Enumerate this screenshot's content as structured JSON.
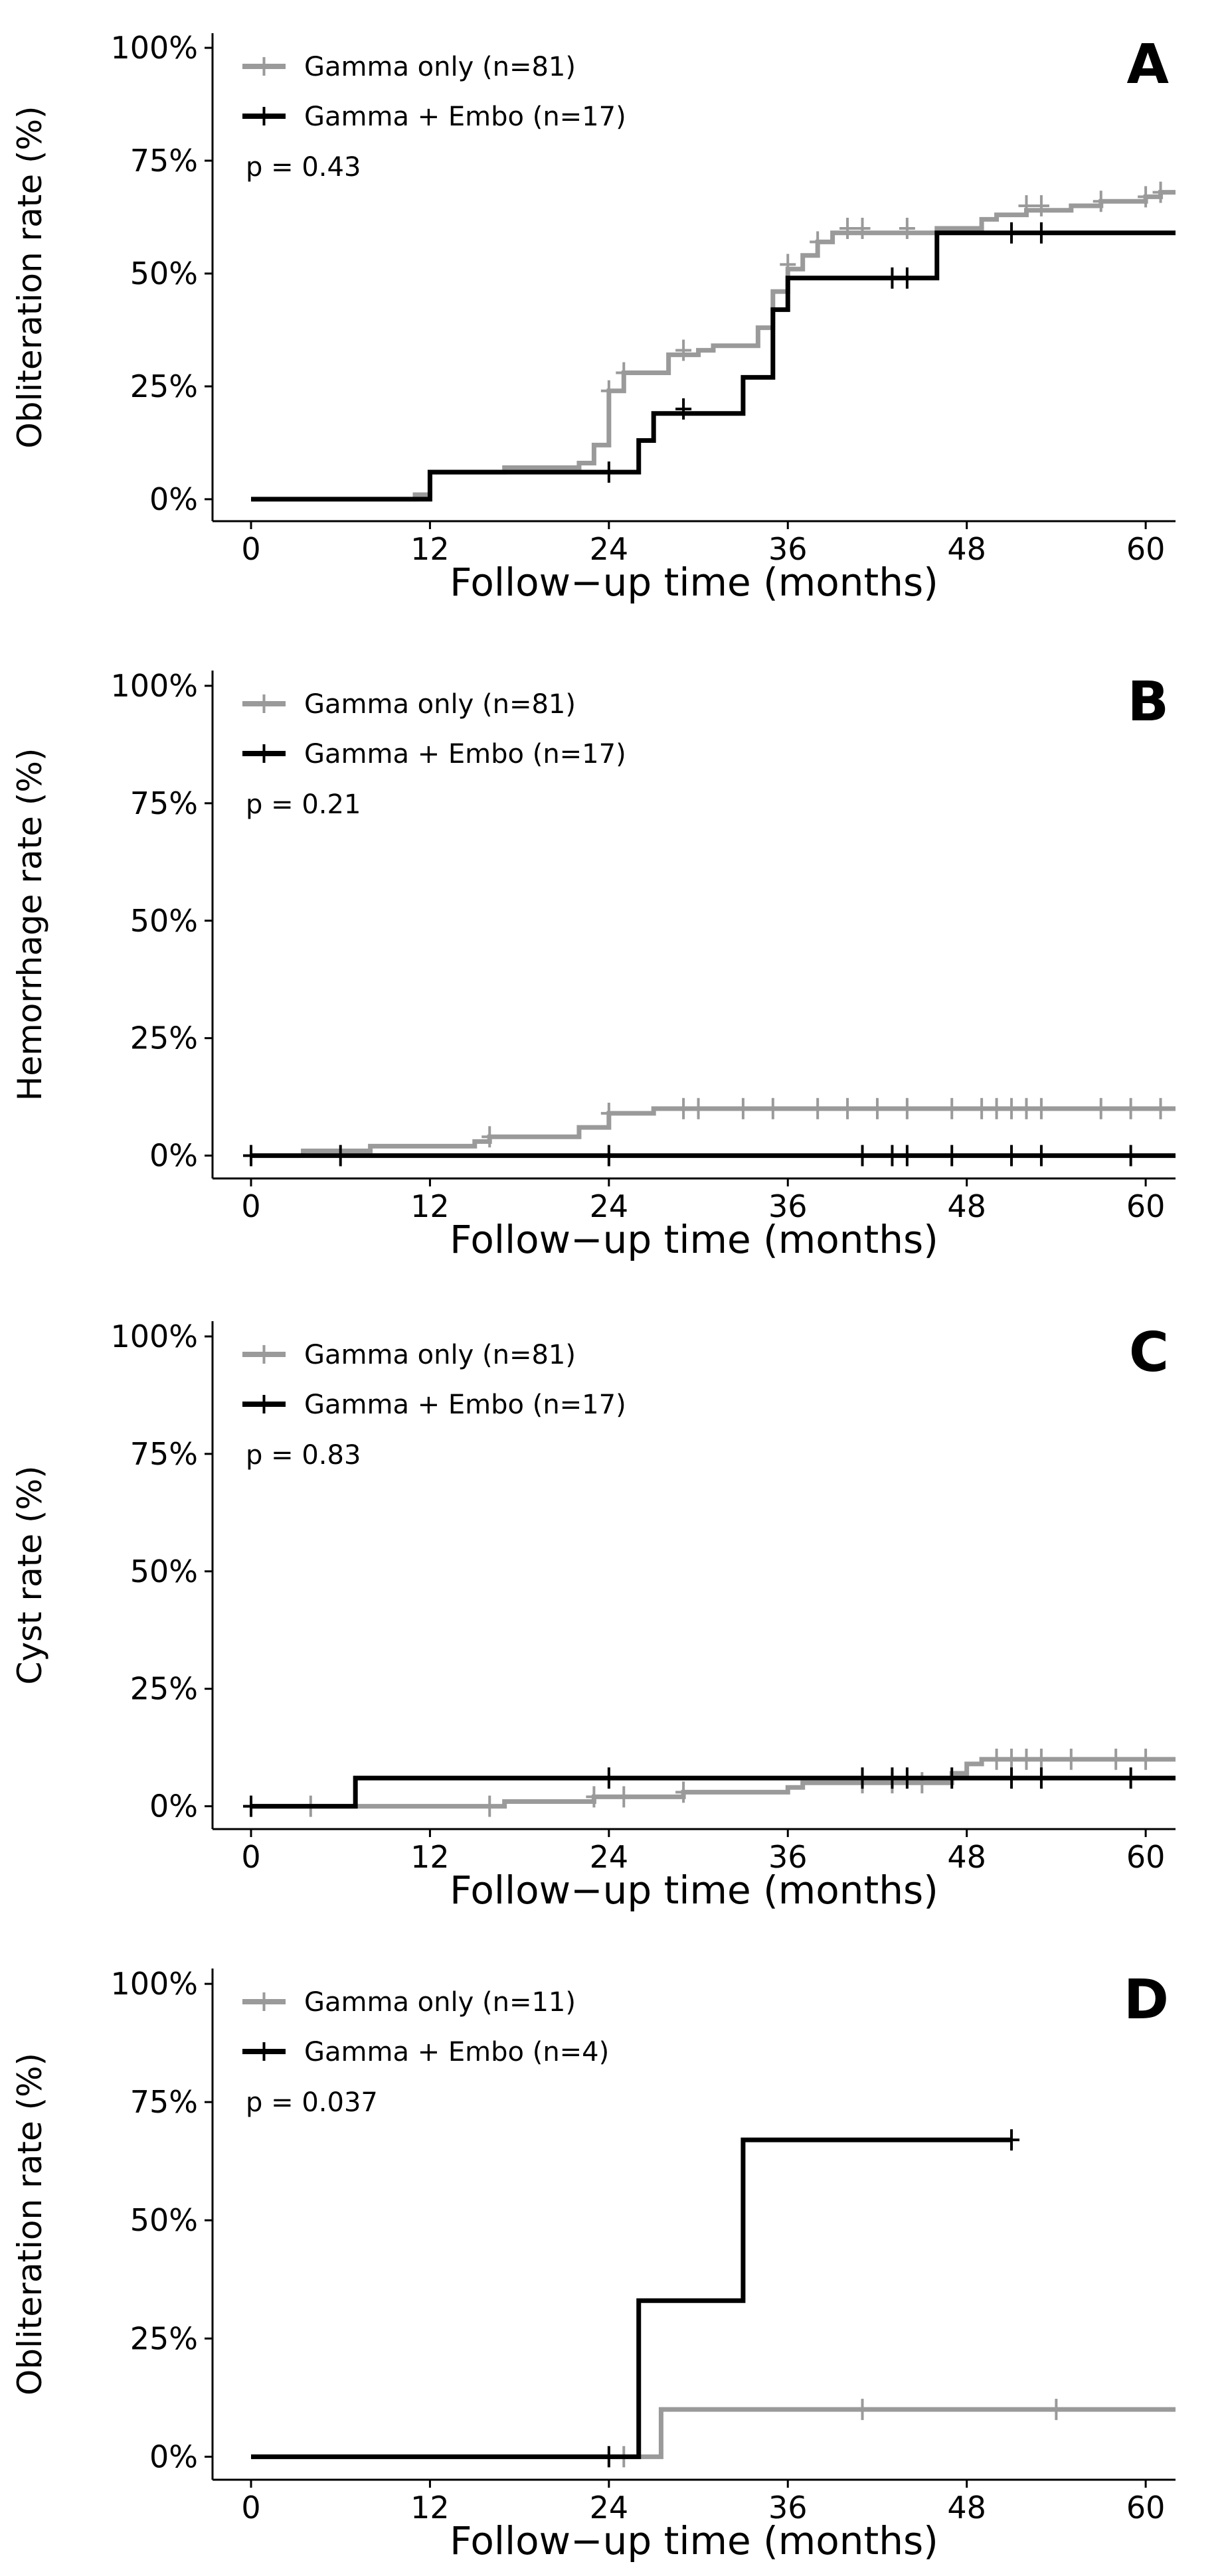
{
  "chart_data": [
    {
      "type": "line",
      "panel_label": "A",
      "ylabel": "Obliteration rate (%)",
      "xlabel": "Follow−up time (months)",
      "xlim": [
        0,
        62
      ],
      "ylim": [
        0,
        100
      ],
      "x_ticks": [
        0,
        12,
        24,
        36,
        48,
        60
      ],
      "y_ticks": [
        "0%",
        "25%",
        "50%",
        "75%",
        "100%"
      ],
      "p_value": "p = 0.43",
      "series": [
        {
          "name": "Gamma only (n=81)",
          "color": "#9a9a9a",
          "steps": [
            [
              0,
              0
            ],
            [
              11,
              1
            ],
            [
              12,
              6
            ],
            [
              17,
              7
            ],
            [
              22,
              8
            ],
            [
              23,
              12
            ],
            [
              24,
              24
            ],
            [
              25,
              28
            ],
            [
              27,
              28
            ],
            [
              28,
              32
            ],
            [
              30,
              33
            ],
            [
              31,
              34
            ],
            [
              34,
              38
            ],
            [
              35,
              46
            ],
            [
              36,
              51
            ],
            [
              37,
              54
            ],
            [
              38,
              57
            ],
            [
              39,
              59
            ],
            [
              46,
              60
            ],
            [
              49,
              62
            ],
            [
              50,
              63
            ],
            [
              52,
              64
            ],
            [
              55,
              65
            ],
            [
              56,
              65
            ],
            [
              57,
              66
            ],
            [
              60,
              67
            ],
            [
              61,
              68
            ],
            [
              62,
              68
            ]
          ],
          "censors": [
            [
              24,
              24
            ],
            [
              25,
              28
            ],
            [
              29,
              33
            ],
            [
              36,
              52
            ],
            [
              38,
              57
            ],
            [
              40,
              60
            ],
            [
              41,
              60
            ],
            [
              44,
              60
            ],
            [
              52,
              65
            ],
            [
              53,
              65
            ],
            [
              57,
              66
            ],
            [
              60,
              67
            ],
            [
              61,
              68
            ]
          ]
        },
        {
          "name": "Gamma + Embo (n=17)",
          "color": "#000000",
          "steps": [
            [
              0,
              0
            ],
            [
              12,
              6
            ],
            [
              25,
              6
            ],
            [
              26,
              13
            ],
            [
              27,
              19
            ],
            [
              33,
              19
            ],
            [
              33,
              27
            ],
            [
              35,
              27
            ],
            [
              35,
              42
            ],
            [
              36,
              49
            ],
            [
              46,
              49
            ],
            [
              46,
              59
            ],
            [
              62,
              59
            ]
          ],
          "censors": [
            [
              24,
              6
            ],
            [
              29,
              20
            ],
            [
              43,
              49
            ],
            [
              44,
              49
            ],
            [
              51,
              59
            ],
            [
              53,
              59
            ]
          ]
        }
      ]
    },
    {
      "type": "line",
      "panel_label": "B",
      "ylabel": "Hemorrhage rate (%)",
      "xlabel": "Follow−up time (months)",
      "xlim": [
        0,
        62
      ],
      "ylim": [
        0,
        100
      ],
      "x_ticks": [
        0,
        12,
        24,
        36,
        48,
        60
      ],
      "y_ticks": [
        "0%",
        "25%",
        "50%",
        "75%",
        "100%"
      ],
      "p_value": "p = 0.21",
      "series": [
        {
          "name": "Gamma only (n=81)",
          "color": "#9a9a9a",
          "steps": [
            [
              3.5,
              0
            ],
            [
              3.5,
              1
            ],
            [
              8,
              2
            ],
            [
              15,
              3
            ],
            [
              16,
              4
            ],
            [
              19,
              4
            ],
            [
              22,
              6
            ],
            [
              24,
              9
            ],
            [
              26,
              9
            ],
            [
              27,
              10
            ],
            [
              28,
              10
            ],
            [
              62,
              10
            ]
          ],
          "censors": [
            [
              16,
              4
            ],
            [
              24,
              9
            ],
            [
              29,
              10
            ],
            [
              30,
              10
            ],
            [
              33,
              10
            ],
            [
              35,
              10
            ],
            [
              38,
              10
            ],
            [
              40,
              10
            ],
            [
              42,
              10
            ],
            [
              44,
              10
            ],
            [
              47,
              10
            ],
            [
              49,
              10
            ],
            [
              50,
              10
            ],
            [
              51,
              10
            ],
            [
              52,
              10
            ],
            [
              53,
              10
            ],
            [
              57,
              10
            ],
            [
              59,
              10
            ],
            [
              61,
              10
            ]
          ]
        },
        {
          "name": "Gamma + Embo (n=17)",
          "color": "#000000",
          "steps": [
            [
              0,
              0
            ],
            [
              62,
              0
            ]
          ],
          "censors": [
            [
              0,
              0
            ],
            [
              6,
              0
            ],
            [
              24,
              0
            ],
            [
              41,
              0
            ],
            [
              43,
              0
            ],
            [
              44,
              0
            ],
            [
              47,
              0
            ],
            [
              51,
              0
            ],
            [
              53,
              0
            ],
            [
              59,
              0
            ]
          ]
        }
      ]
    },
    {
      "type": "line",
      "panel_label": "C",
      "ylabel": "Cyst rate (%)",
      "xlabel": "Follow−up time (months)",
      "xlim": [
        0,
        62
      ],
      "ylim": [
        0,
        100
      ],
      "x_ticks": [
        0,
        12,
        24,
        36,
        48,
        60
      ],
      "y_ticks": [
        "0%",
        "25%",
        "50%",
        "75%",
        "100%"
      ],
      "p_value": "p = 0.83",
      "series": [
        {
          "name": "Gamma only (n=81)",
          "color": "#9a9a9a",
          "steps": [
            [
              0,
              0
            ],
            [
              16,
              0
            ],
            [
              17,
              1
            ],
            [
              22,
              1
            ],
            [
              23,
              2
            ],
            [
              28,
              2
            ],
            [
              29,
              3
            ],
            [
              35,
              3
            ],
            [
              36,
              4
            ],
            [
              37,
              5
            ],
            [
              45,
              5
            ],
            [
              47,
              7
            ],
            [
              48,
              9
            ],
            [
              49,
              10
            ],
            [
              62,
              10
            ]
          ],
          "censors": [
            [
              0,
              0
            ],
            [
              4,
              0
            ],
            [
              16,
              0
            ],
            [
              23,
              2
            ],
            [
              25,
              2
            ],
            [
              29,
              3
            ],
            [
              41,
              5
            ],
            [
              43,
              5
            ],
            [
              45,
              5
            ],
            [
              50,
              10
            ],
            [
              51,
              10
            ],
            [
              52,
              10
            ],
            [
              53,
              10
            ],
            [
              55,
              10
            ],
            [
              58,
              10
            ],
            [
              60,
              10
            ]
          ]
        },
        {
          "name": "Gamma + Embo (n=17)",
          "color": "#000000",
          "steps": [
            [
              0,
              0
            ],
            [
              7,
              0
            ],
            [
              7,
              6
            ],
            [
              62,
              6
            ]
          ],
          "censors": [
            [
              0,
              0
            ],
            [
              24,
              6
            ],
            [
              41,
              6
            ],
            [
              43,
              6
            ],
            [
              44,
              6
            ],
            [
              47,
              6
            ],
            [
              51,
              6
            ],
            [
              53,
              6
            ],
            [
              59,
              6
            ]
          ]
        }
      ]
    },
    {
      "type": "line",
      "panel_label": "D",
      "ylabel": "Obliteration rate (%)",
      "xlabel": "Follow−up time (months)",
      "xlim": [
        0,
        62
      ],
      "ylim": [
        0,
        100
      ],
      "x_ticks": [
        0,
        12,
        24,
        36,
        48,
        60
      ],
      "y_ticks": [
        "0%",
        "25%",
        "50%",
        "75%",
        "100%"
      ],
      "p_value": "p = 0.037",
      "series": [
        {
          "name": "Gamma only (n=11)",
          "color": "#9a9a9a",
          "steps": [
            [
              0,
              0
            ],
            [
              27.5,
              0
            ],
            [
              27.5,
              10
            ],
            [
              62,
              10
            ]
          ],
          "censors": [
            [
              25,
              0
            ],
            [
              41,
              10
            ],
            [
              54,
              10
            ]
          ]
        },
        {
          "name": "Gamma + Embo (n=4)",
          "color": "#000000",
          "steps": [
            [
              0,
              0
            ],
            [
              26,
              0
            ],
            [
              26,
              33
            ],
            [
              33,
              33
            ],
            [
              33,
              67
            ],
            [
              51,
              67
            ]
          ],
          "censors": [
            [
              24,
              0
            ],
            [
              51,
              67
            ]
          ]
        }
      ]
    }
  ]
}
